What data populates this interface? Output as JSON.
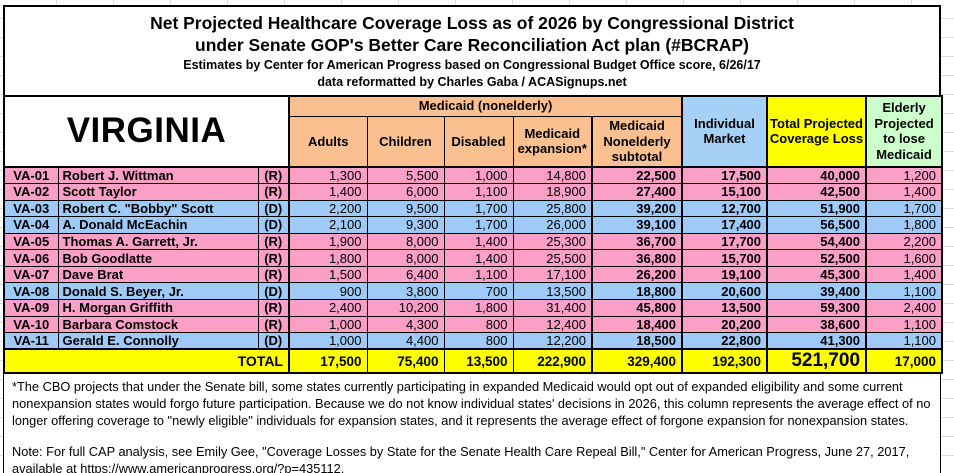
{
  "title": {
    "line1": "Net Projected Healthcare Coverage Loss as of 2026 by Congressional District",
    "line2": "under Senate GOP's Better Care Reconciliation Act plan (#BCRAP)",
    "subtitle1": "Estimates by Center for American Progress based on Congressional Budget Office score, 6/26/17",
    "subtitle2": "data reformatted by Charles Gaba / ACASignups.net"
  },
  "header": {
    "state": "VIRGINIA",
    "medicaid_group": "Medicaid (nonelderly)",
    "adults": "Adults",
    "children": "Children",
    "disabled": "Disabled",
    "expansion": "Medicaid expansion*",
    "subtotal": "Medicaid Nonelderly subtotal",
    "individual": "Individual Market",
    "total": "Total Projected Coverage Loss",
    "elderly": "Elderly Projected to lose Medicaid"
  },
  "table": {
    "rows": [
      {
        "district": "VA-01",
        "name": "Robert J. Wittman",
        "party": "(R)",
        "adults": "1,300",
        "children": "5,500",
        "disabled": "1,000",
        "expansion": "14,800",
        "subtotal": "22,500",
        "individual": "17,500",
        "total": "40,000",
        "elderly": "1,200"
      },
      {
        "district": "VA-02",
        "name": "Scott Taylor",
        "party": "(R)",
        "adults": "1,400",
        "children": "6,000",
        "disabled": "1,100",
        "expansion": "18,900",
        "subtotal": "27,400",
        "individual": "15,100",
        "total": "42,500",
        "elderly": "1,400"
      },
      {
        "district": "VA-03",
        "name": "Robert C. \"Bobby\" Scott",
        "party": "(D)",
        "adults": "2,200",
        "children": "9,500",
        "disabled": "1,700",
        "expansion": "25,800",
        "subtotal": "39,200",
        "individual": "12,700",
        "total": "51,900",
        "elderly": "1,700"
      },
      {
        "district": "VA-04",
        "name": "A. Donald McEachin",
        "party": "(D)",
        "adults": "2,100",
        "children": "9,300",
        "disabled": "1,700",
        "expansion": "26,000",
        "subtotal": "39,100",
        "individual": "17,400",
        "total": "56,500",
        "elderly": "1,800"
      },
      {
        "district": "VA-05",
        "name": "Thomas A. Garrett, Jr.",
        "party": "(R)",
        "adults": "1,900",
        "children": "8,000",
        "disabled": "1,400",
        "expansion": "25,300",
        "subtotal": "36,700",
        "individual": "17,700",
        "total": "54,400",
        "elderly": "2,200"
      },
      {
        "district": "VA-06",
        "name": "Bob Goodlatte",
        "party": "(R)",
        "adults": "1,800",
        "children": "8,000",
        "disabled": "1,400",
        "expansion": "25,500",
        "subtotal": "36,800",
        "individual": "15,700",
        "total": "52,500",
        "elderly": "1,600"
      },
      {
        "district": "VA-07",
        "name": "Dave Brat",
        "party": "(R)",
        "adults": "1,500",
        "children": "6,400",
        "disabled": "1,100",
        "expansion": "17,100",
        "subtotal": "26,200",
        "individual": "19,100",
        "total": "45,300",
        "elderly": "1,400"
      },
      {
        "district": "VA-08",
        "name": "Donald S. Beyer, Jr.",
        "party": "(D)",
        "adults": "900",
        "children": "3,800",
        "disabled": "700",
        "expansion": "13,500",
        "subtotal": "18,800",
        "individual": "20,600",
        "total": "39,400",
        "elderly": "1,100"
      },
      {
        "district": "VA-09",
        "name": "H. Morgan Griffith",
        "party": "(R)",
        "adults": "2,400",
        "children": "10,200",
        "disabled": "1,800",
        "expansion": "31,400",
        "subtotal": "45,800",
        "individual": "13,500",
        "total": "59,300",
        "elderly": "2,400"
      },
      {
        "district": "VA-10",
        "name": "Barbara Comstock",
        "party": "(R)",
        "adults": "1,000",
        "children": "4,300",
        "disabled": "800",
        "expansion": "12,400",
        "subtotal": "18,400",
        "individual": "20,200",
        "total": "38,600",
        "elderly": "1,100"
      },
      {
        "district": "VA-11",
        "name": "Gerald E. Connolly",
        "party": "(D)",
        "adults": "1,000",
        "children": "4,400",
        "disabled": "800",
        "expansion": "12,200",
        "subtotal": "18,500",
        "individual": "22,800",
        "total": "41,300",
        "elderly": "1,100"
      }
    ],
    "total": {
      "label": "TOTAL",
      "adults": "17,500",
      "children": "75,400",
      "disabled": "13,500",
      "expansion": "222,900",
      "subtotal": "329,400",
      "individual": "192,300",
      "total": "521,700",
      "elderly": "17,000"
    }
  },
  "footnotes": {
    "asterisk": "*The CBO projects that under the Senate bill, some states currently participating in expanded Medicaid would opt out of expanded eligibility and some current nonexpansion states would forgo future participation. Because we do not know individual states' decisions in 2026, this column represents the average effect of no longer offering coverage to \"newly eligible\" individuals for expansion states, and it represents the average effect of forgone expansion for nonexpansion states.",
    "note": "Note: For full CAP analysis, see Emily Gee, \"Coverage Losses by State for the Senate Health Care Repeal Bill,\" Center for American Progress, June 27, 2017, available at https://www.americanprogress.org/?p=435112."
  },
  "colors": {
    "republican_row_pink": "#FA9FC5",
    "democrat_row_blue": "#9FC9F6",
    "medicaid_header_orange": "#FAC090",
    "individual_market_header_blue": "#A6D0F5",
    "total_column_yellow": "#FFFF00",
    "elderly_header_green": "#CCFFCC"
  }
}
